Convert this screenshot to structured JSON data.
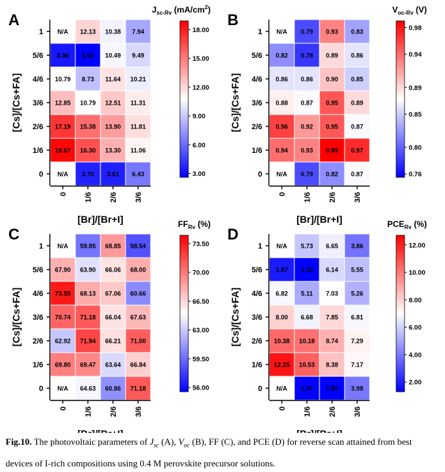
{
  "chart_data": [
    {
      "type": "heatmap",
      "panel_label": "A",
      "colorbar_title": "J",
      "colorbar_title_sub": "sc-Rv",
      "colorbar_title_unit": "(mA/cm",
      "colorbar_title_sup": "2",
      "colorbar_title_close": ")",
      "colorbar_ticks": [
        "18.00",
        "15.00",
        "12.00",
        "9.00",
        "6.00",
        "3.00"
      ],
      "colorbar_tick_values": [
        18,
        15,
        12,
        9,
        6,
        3
      ],
      "color_range": [
        2.6,
        18.9
      ],
      "xlabel": "[Br]/[Br+I]",
      "ylabel": "[Cs]/[Cs+FA]",
      "x_categories": [
        "0",
        "1/6",
        "2/6",
        "3/6"
      ],
      "y_categories": [
        "1",
        "5/6",
        "4/6",
        "3/6",
        "2/6",
        "1/6",
        "0"
      ],
      "values": [
        [
          null,
          12.13,
          10.38,
          7.94
        ],
        [
          3.36,
          2.62,
          10.49,
          9.49
        ],
        [
          10.79,
          8.73,
          11.64,
          10.21
        ],
        [
          12.85,
          10.79,
          12.51,
          11.31
        ],
        [
          17.19,
          15.38,
          13.9,
          11.81
        ],
        [
          18.67,
          16.3,
          13.3,
          11.06
        ],
        [
          null,
          3.7,
          3.61,
          6.43
        ]
      ],
      "labels": [
        [
          "N/A",
          "12.13",
          "10.38",
          "7.94"
        ],
        [
          "3.36",
          "2.62",
          "10.49",
          "9.49"
        ],
        [
          "10.79",
          "8.73",
          "11.64",
          "10.21"
        ],
        [
          "12.85",
          "10.79",
          "12.51",
          "11.31"
        ],
        [
          "17.19",
          "15.38",
          "13.90",
          "11.81"
        ],
        [
          "18.67",
          "16.30",
          "13.30",
          "11.06"
        ],
        [
          "N/A",
          "3.70",
          "3.61",
          "6.43"
        ]
      ]
    },
    {
      "type": "heatmap",
      "panel_label": "B",
      "colorbar_title": "V",
      "colorbar_title_sub": "oc-Rv",
      "colorbar_title_unit": "(V)",
      "colorbar_title_sup": "",
      "colorbar_title_close": "",
      "colorbar_ticks": [
        "0.98",
        "0.94",
        "0.89",
        "0.85",
        "0.80",
        "0.76"
      ],
      "colorbar_tick_values": [
        0.98,
        0.94,
        0.89,
        0.85,
        0.8,
        0.76
      ],
      "color_range": [
        0.755,
        0.99
      ],
      "xlabel": "[Br]/[Br+I]",
      "ylabel": "[Cs]/[Cs+FA]",
      "x_categories": [
        "0",
        "1/6",
        "2/6",
        "3/6"
      ],
      "y_categories": [
        "1",
        "5/6",
        "4/6",
        "3/6",
        "2/6",
        "1/6",
        "0"
      ],
      "values": [
        [
          null,
          0.79,
          0.93,
          0.83
        ],
        [
          0.82,
          0.78,
          0.89,
          0.86
        ],
        [
          0.86,
          0.86,
          0.9,
          0.85
        ],
        [
          0.88,
          0.87,
          0.95,
          0.89
        ],
        [
          0.96,
          0.92,
          0.95,
          0.87
        ],
        [
          0.94,
          0.93,
          0.99,
          0.97
        ],
        [
          null,
          0.79,
          0.82,
          0.87
        ]
      ],
      "labels": [
        [
          "N/A",
          "0.79",
          "0.93",
          "0.83"
        ],
        [
          "0.82",
          "0.78",
          "0.89",
          "0.86"
        ],
        [
          "0.86",
          "0.86",
          "0.90",
          "0.85"
        ],
        [
          "0.88",
          "0.87",
          "0.95",
          "0.89"
        ],
        [
          "0.96",
          "0.92",
          "0.95",
          "0.87"
        ],
        [
          "0.94",
          "0.93",
          "0.99",
          "0.97"
        ],
        [
          "N/A",
          "0.79",
          "0.82",
          "0.87"
        ]
      ]
    },
    {
      "type": "heatmap",
      "panel_label": "C",
      "colorbar_title": "FF",
      "colorbar_title_sub": "Rv",
      "colorbar_title_unit": "(%)",
      "colorbar_title_sup": "",
      "colorbar_title_close": "",
      "colorbar_ticks": [
        "73.50",
        "70.00",
        "66.50",
        "63.00",
        "59.50",
        "56.00"
      ],
      "colorbar_tick_values": [
        73.5,
        70,
        66.5,
        63,
        59.5,
        56
      ],
      "color_range": [
        55.5,
        74.5
      ],
      "xlabel": "[Br]/[Br+I]",
      "ylabel": "[Cs]/[Cs+FA]",
      "x_categories": [
        "0",
        "1/6",
        "2/6",
        "3/6"
      ],
      "y_categories": [
        "1",
        "5/6",
        "4/6",
        "3/6",
        "2/6",
        "1/6",
        "0"
      ],
      "values": [
        [
          null,
          59.85,
          68.85,
          58.54
        ],
        [
          67.9,
          63.9,
          66.06,
          68.0
        ],
        [
          73.55,
          68.13,
          67.06,
          60.66
        ],
        [
          70.74,
          71.18,
          66.04,
          67.63
        ],
        [
          62.92,
          71.94,
          66.21,
          71.0
        ],
        [
          69.8,
          69.47,
          63.64,
          66.84
        ],
        [
          null,
          64.63,
          60.86,
          71.18
        ]
      ],
      "labels": [
        [
          "N/A",
          "59.85",
          "68.85",
          "58.54"
        ],
        [
          "67.90",
          "63.90",
          "66.06",
          "68.00"
        ],
        [
          "73.55",
          "68.13",
          "67.06",
          "60.66"
        ],
        [
          "70.74",
          "71.18",
          "66.04",
          "67.63"
        ],
        [
          "62.92",
          "71.94",
          "66.21",
          "71.00"
        ],
        [
          "69.80",
          "69.47",
          "63.64",
          "66.84"
        ],
        [
          "N/A",
          "64.63",
          "60.86",
          "71.18"
        ]
      ]
    },
    {
      "type": "heatmap",
      "panel_label": "D",
      "colorbar_title": "PCE",
      "colorbar_title_sub": "Rv",
      "colorbar_title_unit": "(%)",
      "colorbar_title_sup": "",
      "colorbar_title_close": "",
      "colorbar_ticks": [
        "12.00",
        "10.00",
        "8.00",
        "6.00",
        "4.00",
        "2.00"
      ],
      "colorbar_tick_values": [
        12,
        10,
        8,
        6,
        4,
        2
      ],
      "color_range": [
        1.3,
        12.7
      ],
      "xlabel": "[Br]/[Br+I]",
      "ylabel": "[Cs]/[Cs+FA]",
      "x_categories": [
        "0",
        "1/6",
        "2/6",
        "3/6"
      ],
      "y_categories": [
        "1",
        "5/6",
        "4/6",
        "3/6",
        "2/6",
        "1/6",
        "0"
      ],
      "values": [
        [
          null,
          5.73,
          6.65,
          3.86
        ],
        [
          1.87,
          1.33,
          6.14,
          5.55
        ],
        [
          6.82,
          5.11,
          7.03,
          5.26
        ],
        [
          8.0,
          6.68,
          7.85,
          6.81
        ],
        [
          10.38,
          10.18,
          8.74,
          7.29
        ],
        [
          12.25,
          10.53,
          8.38,
          7.17
        ],
        [
          null,
          1.37,
          1.3,
          3.98
        ]
      ],
      "labels": [
        [
          "N/A",
          "5.73",
          "6.65",
          "3.86"
        ],
        [
          "1.87",
          "1.33",
          "6.14",
          "5.55"
        ],
        [
          "6.82",
          "5.11",
          "7.03",
          "5.26"
        ],
        [
          "8.00",
          "6.68",
          "7.85",
          "6.81"
        ],
        [
          "10.38",
          "10.18",
          "8.74",
          "7.29"
        ],
        [
          "12.25",
          "10.53",
          "8.38",
          "7.17"
        ],
        [
          "N/A",
          "1.37",
          "1.30",
          "3.98"
        ]
      ]
    }
  ],
  "colors": {
    "low": "#0000ff",
    "mid": "#ffffff",
    "high": "#ff0000",
    "na": "#ffffff"
  },
  "caption": {
    "fig_label": "Fig.10.",
    "text_1": " The photovoltaic parameters of ",
    "jsc_main": "J",
    "jsc_sub": "sc",
    "text_2": " (A), ",
    "voc_main": "V",
    "voc_sub": "oc",
    "text_3": " (B), FF (C), and PCE (D) for reverse scan attained from best devices of I-rich compositions using 0.4 M perovskite precursor solutions."
  }
}
